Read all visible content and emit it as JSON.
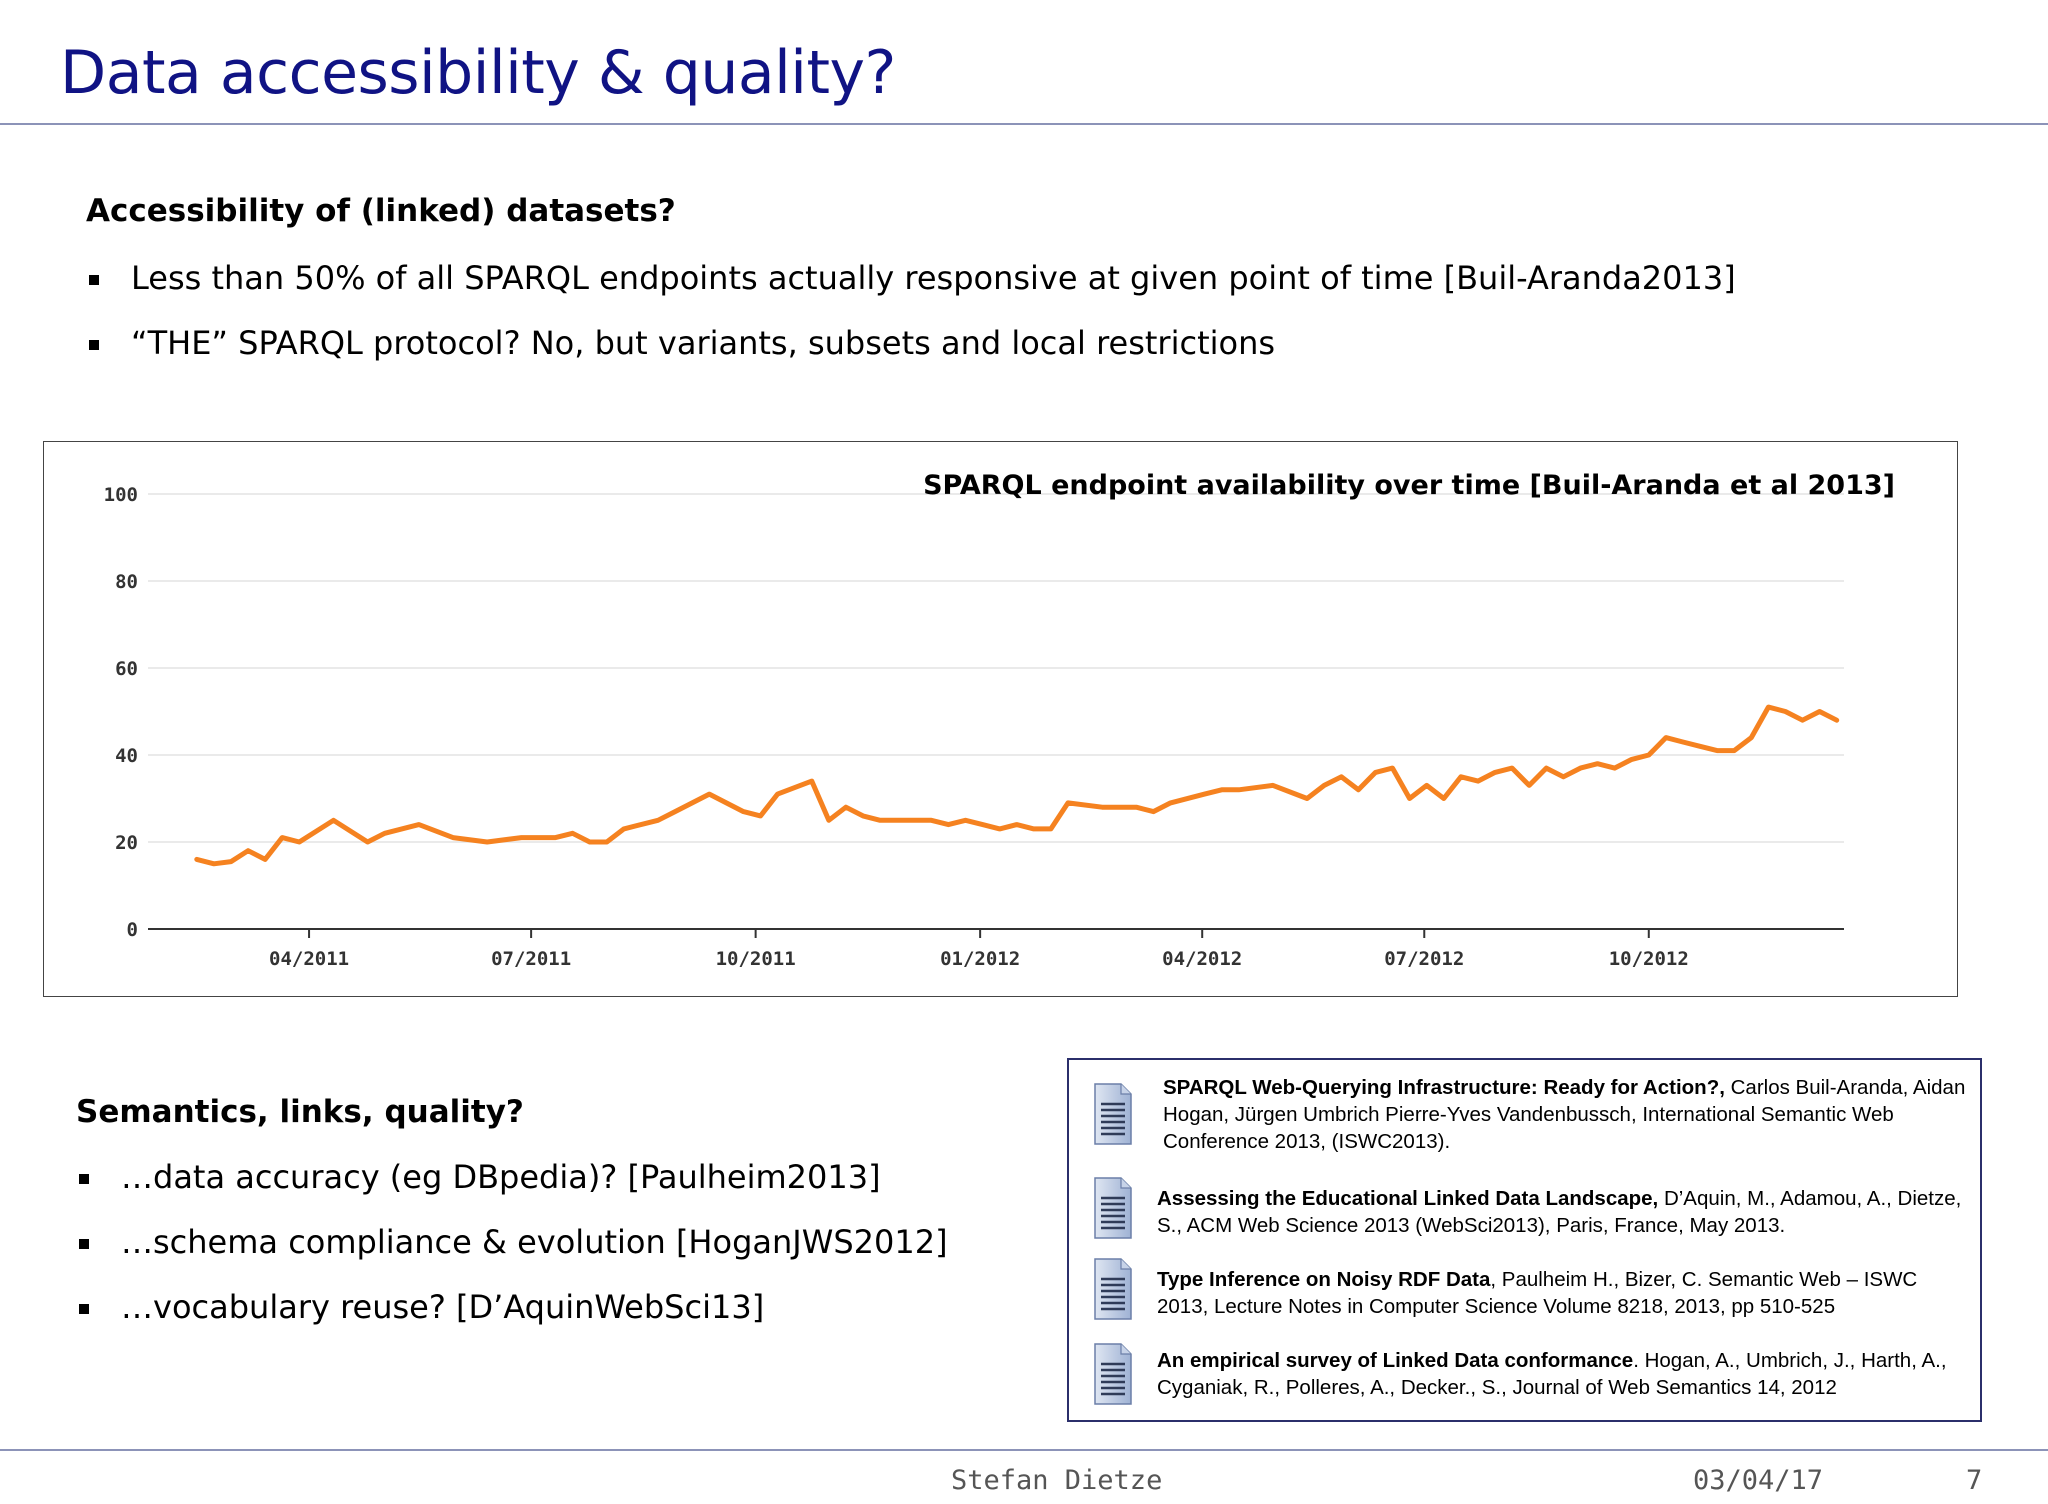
{
  "slide": {
    "title": "Data accessibility & quality?"
  },
  "section1": {
    "heading": "Accessibility of (linked) datasets?",
    "bullets": [
      "Less than 50% of all SPARQL endpoints actually responsive at given point of time [Buil-Aranda2013]",
      "“THE” SPARQL protocol?  No, but variants, subsets and local restrictions"
    ]
  },
  "section2": {
    "heading": "Semantics, links, quality?",
    "bullets": [
      "…data accuracy (eg DBpedia)? [Paulheim2013]",
      "…schema compliance & evolution [HoganJWS2012]",
      "…vocabulary reuse? [D’AquinWebSci13]"
    ]
  },
  "chart_data": {
    "type": "line",
    "title": "SPARQL endpoint availability over time [Buil-Aranda et al 2013]",
    "xlabel": "",
    "ylabel": "",
    "ylim": [
      0,
      100
    ],
    "yticks": [
      "0",
      "20",
      "40",
      "60",
      "80",
      "100"
    ],
    "xticks": [
      "04/2011",
      "07/2011",
      "10/2011",
      "01/2012",
      "04/2012",
      "07/2012",
      "10/2012"
    ],
    "grid": true,
    "line_color": "#f58220",
    "series": [
      {
        "x": [
          "2011-02-14",
          "2011-02-21",
          "2011-02-28",
          "2011-03-07",
          "2011-03-14",
          "2011-03-21",
          "2011-03-28",
          "2011-04-11",
          "2011-04-25",
          "2011-05-02",
          "2011-05-16",
          "2011-05-30",
          "2011-06-13",
          "2011-06-27",
          "2011-07-11",
          "2011-07-18",
          "2011-07-25",
          "2011-08-01",
          "2011-08-08",
          "2011-08-22",
          "2011-08-29",
          "2011-09-12",
          "2011-09-26",
          "2011-10-03",
          "2011-10-10",
          "2011-10-24",
          "2011-10-31",
          "2011-11-07",
          "2011-11-14",
          "2011-11-21",
          "2011-12-05",
          "2011-12-12",
          "2011-12-19",
          "2011-12-26",
          "2012-01-02",
          "2012-01-09",
          "2012-01-16",
          "2012-01-23",
          "2012-01-30",
          "2012-02-06",
          "2012-02-20",
          "2012-03-05",
          "2012-03-12",
          "2012-03-19",
          "2012-04-02",
          "2012-04-09",
          "2012-04-16",
          "2012-04-30",
          "2012-05-14",
          "2012-05-21",
          "2012-05-28",
          "2012-06-04",
          "2012-06-11",
          "2012-06-18",
          "2012-06-25",
          "2012-07-02",
          "2012-07-09",
          "2012-07-16",
          "2012-07-23",
          "2012-07-30",
          "2012-08-06",
          "2012-08-13",
          "2012-08-20",
          "2012-08-27",
          "2012-09-03",
          "2012-09-10",
          "2012-09-17",
          "2012-09-24",
          "2012-10-01",
          "2012-10-08",
          "2012-10-15",
          "2012-10-22",
          "2012-10-29",
          "2012-11-05",
          "2012-11-12",
          "2012-11-19",
          "2012-11-26",
          "2012-12-03",
          "2012-12-10",
          "2012-12-17"
        ],
        "values": [
          16,
          15,
          15.5,
          18,
          16,
          21,
          20,
          25,
          20,
          22,
          24,
          21,
          20,
          21,
          21,
          22,
          20,
          20,
          23,
          25,
          27,
          31,
          27,
          26,
          31,
          34,
          25,
          28,
          26,
          25,
          25,
          25,
          24,
          25,
          24,
          23,
          24,
          23,
          23,
          29,
          28,
          28,
          27,
          29,
          31,
          32,
          32,
          33,
          30,
          33,
          35,
          32,
          36,
          37,
          30,
          33,
          30,
          35,
          34,
          36,
          37,
          33,
          37,
          35,
          37,
          38,
          37,
          39,
          40,
          44,
          43,
          42,
          41,
          41,
          44,
          51,
          50,
          48,
          50,
          48
        ]
      }
    ]
  },
  "references": [
    {
      "title": "SPARQL Web-Querying Infrastructure: Ready for Action?,",
      "rest": " Carlos Buil-Aranda, Aidan Hogan, Jürgen Umbrich Pierre-Yves Vandenbussch, International Semantic Web Conference 2013, (ISWC2013)."
    },
    {
      "title": "Assessing the Educational Linked Data Landscape,",
      "rest": " D’Aquin, M., Adamou, A., Dietze, S., ACM Web Science 2013 (WebSci2013), Paris, France, May 2013."
    },
    {
      "title": "Type Inference on Noisy RDF Data",
      "rest": ", Paulheim H., Bizer, C. Semantic Web – ISWC 2013, Lecture Notes in Computer Science Volume 8218, 2013, pp 510-525"
    },
    {
      "title": "An empirical survey of Linked Data conformance",
      "rest": ". Hogan, A., Umbrich, J., Harth, A., Cyganiak, R., Polleres, A., Decker., S., Journal of Web Semantics 14, 2012"
    }
  ],
  "footer": {
    "author": "Stefan Dietze",
    "date": "03/04/17",
    "page": "7"
  },
  "icons": {
    "reference": "document-icon"
  }
}
